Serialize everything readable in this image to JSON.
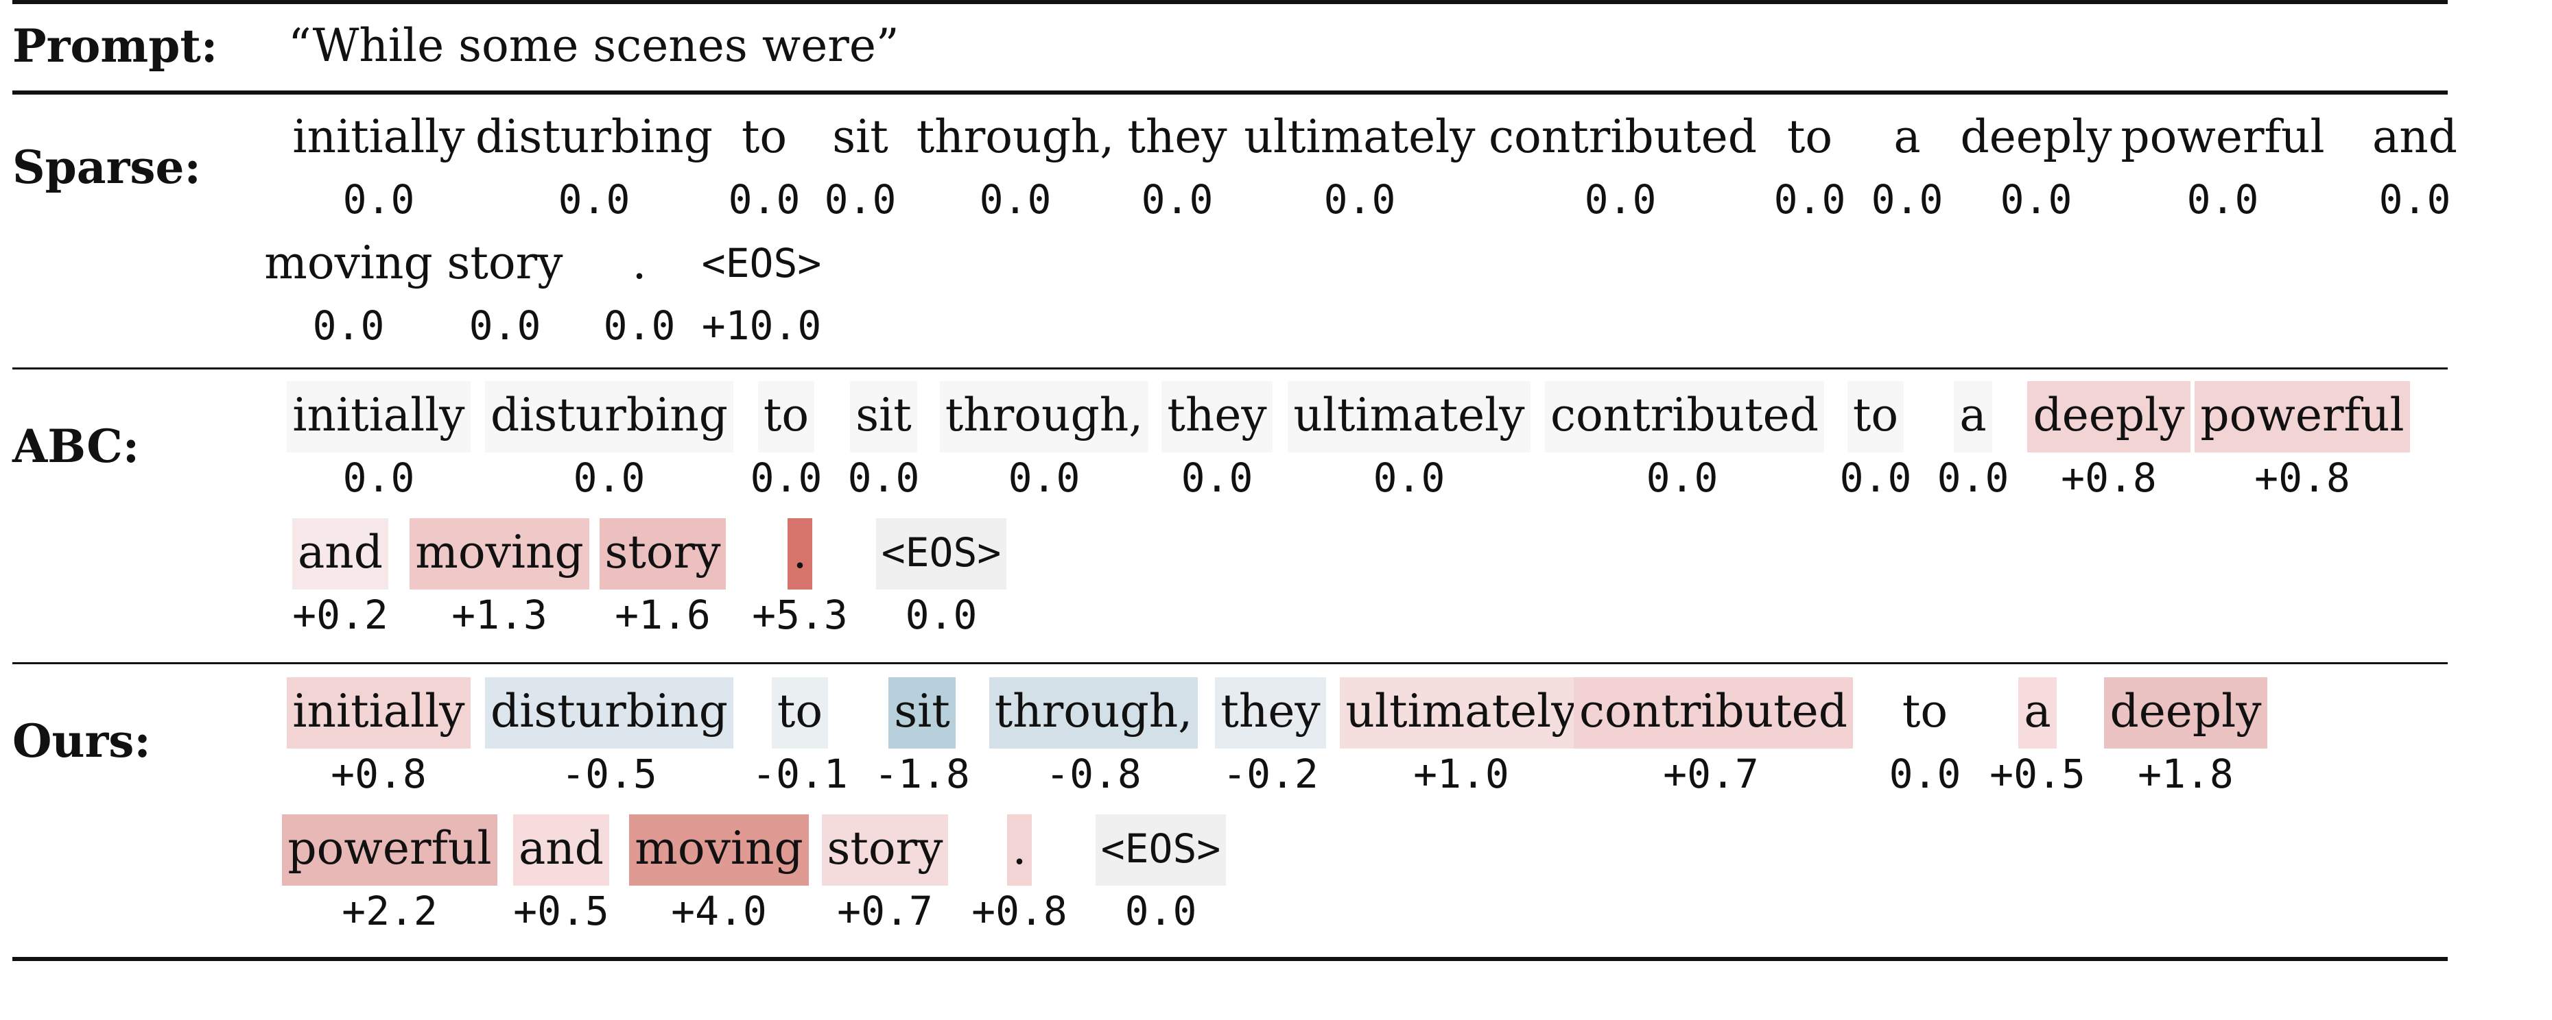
{
  "prompt": {
    "label": "Prompt:",
    "text": "“While some scenes were”"
  },
  "rows": [
    {
      "label": "Sparse:",
      "tokens": [
        {
          "w": "initially",
          "s": "0.0",
          "c": "#ffffff"
        },
        {
          "w": "disturbing",
          "s": "0.0",
          "c": "#ffffff"
        },
        {
          "w": "to",
          "s": "0.0",
          "c": "#ffffff"
        },
        {
          "w": "sit",
          "s": "0.0",
          "c": "#ffffff"
        },
        {
          "w": "through,",
          "s": "0.0",
          "c": "#ffffff"
        },
        {
          "w": "they",
          "s": "0.0",
          "c": "#ffffff"
        },
        {
          "w": "ultimately",
          "s": "0.0",
          "c": "#ffffff"
        },
        {
          "w": "contributed",
          "s": "0.0",
          "c": "#ffffff"
        },
        {
          "w": "to",
          "s": "0.0",
          "c": "#ffffff"
        },
        {
          "w": "a",
          "s": "0.0",
          "c": "#ffffff"
        },
        {
          "w": "deeply",
          "s": "0.0",
          "c": "#ffffff"
        },
        {
          "w": "powerful",
          "s": "0.0",
          "c": "#ffffff"
        },
        {
          "w": "and",
          "s": "0.0",
          "c": "#ffffff"
        },
        {
          "w": "moving",
          "s": "0.0",
          "c": "#ffffff"
        },
        {
          "w": "story",
          "s": "0.0",
          "c": "#ffffff"
        },
        {
          "w": ".",
          "s": "0.0",
          "c": "#ffffff"
        },
        {
          "w": "<EOS>",
          "s": "+10.0",
          "c": "#ffffff",
          "mono": true
        }
      ]
    },
    {
      "label": "ABC:",
      "tokens": [
        {
          "w": "initially",
          "s": "0.0",
          "c": "#f7f7f7"
        },
        {
          "w": "disturbing",
          "s": "0.0",
          "c": "#f7f7f7"
        },
        {
          "w": "to",
          "s": "0.0",
          "c": "#f7f7f7"
        },
        {
          "w": "sit",
          "s": "0.0",
          "c": "#f7f7f7"
        },
        {
          "w": "through,",
          "s": "0.0",
          "c": "#f7f7f7"
        },
        {
          "w": "they",
          "s": "0.0",
          "c": "#f7f7f7"
        },
        {
          "w": "ultimately",
          "s": "0.0",
          "c": "#f7f7f7"
        },
        {
          "w": "contributed",
          "s": "0.0",
          "c": "#f7f7f7"
        },
        {
          "w": "to",
          "s": "0.0",
          "c": "#f7f7f7"
        },
        {
          "w": "a",
          "s": "0.0",
          "c": "#f7f7f7"
        },
        {
          "w": "deeply",
          "s": "+0.8",
          "c": "#f3d4d4"
        },
        {
          "w": "powerful",
          "s": "+0.8",
          "c": "#f3d4d4"
        },
        {
          "w": "and",
          "s": "+0.2",
          "c": "#f7e9e9"
        },
        {
          "w": "moving",
          "s": "+1.3",
          "c": "#efc8c8"
        },
        {
          "w": "story",
          "s": "+1.6",
          "c": "#ecc0bf"
        },
        {
          "w": ".",
          "s": "+5.3",
          "c": "#d6736b"
        },
        {
          "w": "<EOS>",
          "s": "0.0",
          "c": "#f0f0f0",
          "mono": true
        }
      ]
    },
    {
      "label": "Ours:",
      "tokens": [
        {
          "w": "initially",
          "s": "+0.8",
          "c": "#f3d4d4"
        },
        {
          "w": "disturbing",
          "s": "-0.5",
          "c": "#dde6ec"
        },
        {
          "w": "to",
          "s": "-0.1",
          "c": "#eaeff2"
        },
        {
          "w": "sit",
          "s": "-1.8",
          "c": "#b8cfdc"
        },
        {
          "w": "through,",
          "s": "-0.8",
          "c": "#d4e0e7"
        },
        {
          "w": "they",
          "s": "-0.2",
          "c": "#e6ecf0"
        },
        {
          "w": "ultimately",
          "s": "+1.0",
          "c": "#f5dede"
        },
        {
          "w": "contributed",
          "s": "+0.7",
          "c": "#f2d2d2"
        },
        {
          "w": "to",
          "s": "0.0",
          "c": "#ffffff"
        },
        {
          "w": "a",
          "s": "+0.5",
          "c": "#f6dcdc"
        },
        {
          "w": "deeply",
          "s": "+1.8",
          "c": "#ebc3c2"
        },
        {
          "w": "powerful",
          "s": "+2.2",
          "c": "#e8b8b7"
        },
        {
          "w": "and",
          "s": "+0.5",
          "c": "#f6dcdc"
        },
        {
          "w": "moving",
          "s": "+4.0",
          "c": "#df9a94"
        },
        {
          "w": "story",
          "s": "+0.7",
          "c": "#f5dcdc"
        },
        {
          "w": ".",
          "s": "+0.8",
          "c": "#f3d4d4"
        },
        {
          "w": "<EOS>",
          "s": "0.0",
          "c": "#f0f0f0",
          "mono": true
        }
      ]
    }
  ]
}
